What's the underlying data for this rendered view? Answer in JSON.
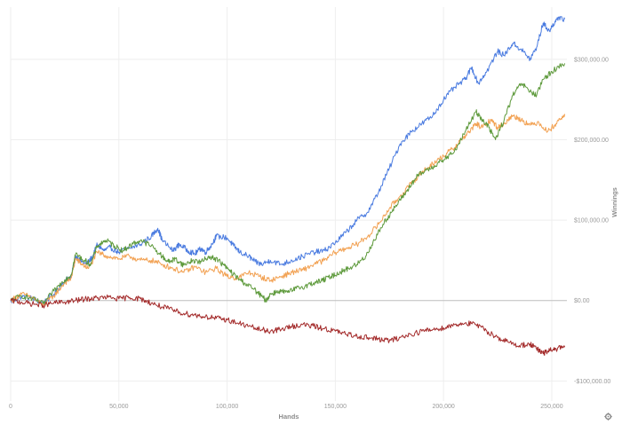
{
  "chart_data": {
    "type": "line",
    "title": "",
    "xlabel": "Hands",
    "ylabel": "Winnings",
    "xlim": [
      0,
      257000
    ],
    "ylim": [
      -125000,
      365000
    ],
    "x_ticks": [
      0,
      50000,
      100000,
      150000,
      200000,
      250000
    ],
    "x_tick_labels": [
      "0",
      "50,000",
      "100,000",
      "150,000",
      "200,000",
      "250,000"
    ],
    "y_ticks": [
      -100000,
      0,
      100000,
      200000,
      300000
    ],
    "y_tick_labels": [
      "-$100,000.00",
      "$0.00",
      "$100,000.00",
      "$200,000.00",
      "$300,000.00"
    ],
    "grid": true,
    "series": [
      {
        "color": "#4a7be0",
        "points": [
          [
            0,
            -2000
          ],
          [
            5000,
            5000
          ],
          [
            10000,
            3000
          ],
          [
            15000,
            -3000
          ],
          [
            20000,
            8000
          ],
          [
            25000,
            25000
          ],
          [
            28000,
            30000
          ],
          [
            30000,
            55000
          ],
          [
            32000,
            50000
          ],
          [
            35000,
            45000
          ],
          [
            38000,
            55000
          ],
          [
            40000,
            70000
          ],
          [
            43000,
            62000
          ],
          [
            46000,
            66000
          ],
          [
            50000,
            60000
          ],
          [
            55000,
            65000
          ],
          [
            60000,
            70000
          ],
          [
            65000,
            80000
          ],
          [
            68000,
            90000
          ],
          [
            70000,
            75000
          ],
          [
            75000,
            62000
          ],
          [
            78000,
            70000
          ],
          [
            82000,
            62000
          ],
          [
            85000,
            58000
          ],
          [
            88000,
            65000
          ],
          [
            90000,
            60000
          ],
          [
            93000,
            70000
          ],
          [
            95000,
            80000
          ],
          [
            100000,
            78000
          ],
          [
            103000,
            68000
          ],
          [
            106000,
            60000
          ],
          [
            110000,
            55000
          ],
          [
            113000,
            48000
          ],
          [
            116000,
            45000
          ],
          [
            120000,
            50000
          ],
          [
            125000,
            45000
          ],
          [
            130000,
            50000
          ],
          [
            135000,
            55000
          ],
          [
            140000,
            60000
          ],
          [
            145000,
            62000
          ],
          [
            150000,
            72000
          ],
          [
            155000,
            85000
          ],
          [
            160000,
            100000
          ],
          [
            165000,
            110000
          ],
          [
            170000,
            135000
          ],
          [
            175000,
            165000
          ],
          [
            180000,
            195000
          ],
          [
            185000,
            210000
          ],
          [
            190000,
            220000
          ],
          [
            195000,
            230000
          ],
          [
            200000,
            250000
          ],
          [
            205000,
            265000
          ],
          [
            210000,
            275000
          ],
          [
            213000,
            290000
          ],
          [
            216000,
            270000
          ],
          [
            220000,
            285000
          ],
          [
            225000,
            310000
          ],
          [
            228000,
            305000
          ],
          [
            232000,
            320000
          ],
          [
            236000,
            312000
          ],
          [
            240000,
            300000
          ],
          [
            243000,
            315000
          ],
          [
            246000,
            345000
          ],
          [
            249000,
            335000
          ],
          [
            252000,
            350000
          ],
          [
            256000,
            350000
          ]
        ]
      },
      {
        "color": "#f2a152",
        "points": [
          [
            0,
            0
          ],
          [
            5000,
            8000
          ],
          [
            10000,
            4000
          ],
          [
            15000,
            -6000
          ],
          [
            20000,
            6000
          ],
          [
            25000,
            22000
          ],
          [
            28000,
            28000
          ],
          [
            30000,
            52000
          ],
          [
            33000,
            45000
          ],
          [
            36000,
            40000
          ],
          [
            40000,
            60000
          ],
          [
            45000,
            55000
          ],
          [
            50000,
            52000
          ],
          [
            55000,
            55000
          ],
          [
            60000,
            50000
          ],
          [
            65000,
            50000
          ],
          [
            70000,
            45000
          ],
          [
            75000,
            40000
          ],
          [
            80000,
            35000
          ],
          [
            85000,
            42000
          ],
          [
            90000,
            35000
          ],
          [
            95000,
            40000
          ],
          [
            100000,
            30000
          ],
          [
            105000,
            28000
          ],
          [
            110000,
            35000
          ],
          [
            115000,
            30000
          ],
          [
            120000,
            25000
          ],
          [
            125000,
            30000
          ],
          [
            130000,
            35000
          ],
          [
            135000,
            38000
          ],
          [
            140000,
            45000
          ],
          [
            145000,
            50000
          ],
          [
            150000,
            60000
          ],
          [
            155000,
            65000
          ],
          [
            160000,
            70000
          ],
          [
            165000,
            80000
          ],
          [
            170000,
            95000
          ],
          [
            175000,
            115000
          ],
          [
            180000,
            130000
          ],
          [
            185000,
            145000
          ],
          [
            190000,
            160000
          ],
          [
            195000,
            170000
          ],
          [
            200000,
            180000
          ],
          [
            205000,
            190000
          ],
          [
            208000,
            200000
          ],
          [
            212000,
            210000
          ],
          [
            215000,
            220000
          ],
          [
            218000,
            215000
          ],
          [
            222000,
            225000
          ],
          [
            225000,
            215000
          ],
          [
            228000,
            220000
          ],
          [
            232000,
            230000
          ],
          [
            236000,
            225000
          ],
          [
            240000,
            218000
          ],
          [
            244000,
            222000
          ],
          [
            248000,
            210000
          ],
          [
            252000,
            220000
          ],
          [
            256000,
            232000
          ]
        ]
      },
      {
        "color": "#5e9a3c",
        "points": [
          [
            0,
            0
          ],
          [
            5000,
            6000
          ],
          [
            10000,
            2000
          ],
          [
            15000,
            -4000
          ],
          [
            20000,
            12000
          ],
          [
            25000,
            26000
          ],
          [
            28000,
            32000
          ],
          [
            30000,
            58000
          ],
          [
            34000,
            50000
          ],
          [
            37000,
            45000
          ],
          [
            40000,
            68000
          ],
          [
            44000,
            75000
          ],
          [
            48000,
            68000
          ],
          [
            52000,
            62000
          ],
          [
            56000,
            70000
          ],
          [
            60000,
            75000
          ],
          [
            65000,
            68000
          ],
          [
            70000,
            55000
          ],
          [
            73000,
            48000
          ],
          [
            76000,
            52000
          ],
          [
            80000,
            44000
          ],
          [
            84000,
            50000
          ],
          [
            88000,
            48000
          ],
          [
            92000,
            55000
          ],
          [
            96000,
            50000
          ],
          [
            100000,
            40000
          ],
          [
            104000,
            30000
          ],
          [
            108000,
            22000
          ],
          [
            112000,
            15000
          ],
          [
            116000,
            5000
          ],
          [
            118000,
            0
          ],
          [
            120000,
            8000
          ],
          [
            124000,
            12000
          ],
          [
            128000,
            10000
          ],
          [
            132000,
            15000
          ],
          [
            136000,
            18000
          ],
          [
            140000,
            22000
          ],
          [
            144000,
            25000
          ],
          [
            148000,
            30000
          ],
          [
            152000,
            35000
          ],
          [
            156000,
            40000
          ],
          [
            160000,
            45000
          ],
          [
            164000,
            55000
          ],
          [
            168000,
            75000
          ],
          [
            172000,
            95000
          ],
          [
            176000,
            110000
          ],
          [
            180000,
            125000
          ],
          [
            184000,
            140000
          ],
          [
            188000,
            155000
          ],
          [
            192000,
            162000
          ],
          [
            196000,
            168000
          ],
          [
            200000,
            175000
          ],
          [
            205000,
            185000
          ],
          [
            210000,
            210000
          ],
          [
            215000,
            235000
          ],
          [
            218000,
            225000
          ],
          [
            221000,
            215000
          ],
          [
            224000,
            200000
          ],
          [
            228000,
            225000
          ],
          [
            232000,
            255000
          ],
          [
            236000,
            270000
          ],
          [
            240000,
            260000
          ],
          [
            243000,
            255000
          ],
          [
            246000,
            275000
          ],
          [
            250000,
            285000
          ],
          [
            256000,
            295000
          ]
        ]
      },
      {
        "color": "#a32a2a",
        "points": [
          [
            0,
            0
          ],
          [
            5000,
            -2000
          ],
          [
            10000,
            -4000
          ],
          [
            15000,
            -6000
          ],
          [
            20000,
            -3000
          ],
          [
            25000,
            -2000
          ],
          [
            30000,
            0
          ],
          [
            35000,
            2000
          ],
          [
            40000,
            3000
          ],
          [
            45000,
            4000
          ],
          [
            50000,
            2000
          ],
          [
            55000,
            4000
          ],
          [
            60000,
            2000
          ],
          [
            65000,
            -3000
          ],
          [
            70000,
            -8000
          ],
          [
            75000,
            -12000
          ],
          [
            80000,
            -16000
          ],
          [
            85000,
            -18000
          ],
          [
            90000,
            -20000
          ],
          [
            95000,
            -22000
          ],
          [
            100000,
            -24000
          ],
          [
            105000,
            -28000
          ],
          [
            110000,
            -32000
          ],
          [
            115000,
            -36000
          ],
          [
            120000,
            -38000
          ],
          [
            125000,
            -36000
          ],
          [
            130000,
            -32000
          ],
          [
            135000,
            -30000
          ],
          [
            140000,
            -32000
          ],
          [
            145000,
            -35000
          ],
          [
            150000,
            -38000
          ],
          [
            155000,
            -42000
          ],
          [
            160000,
            -44000
          ],
          [
            165000,
            -46000
          ],
          [
            170000,
            -48000
          ],
          [
            175000,
            -50000
          ],
          [
            180000,
            -46000
          ],
          [
            185000,
            -42000
          ],
          [
            190000,
            -38000
          ],
          [
            195000,
            -36000
          ],
          [
            200000,
            -34000
          ],
          [
            205000,
            -30000
          ],
          [
            210000,
            -28000
          ],
          [
            215000,
            -30000
          ],
          [
            220000,
            -38000
          ],
          [
            225000,
            -46000
          ],
          [
            230000,
            -52000
          ],
          [
            235000,
            -56000
          ],
          [
            240000,
            -54000
          ],
          [
            243000,
            -60000
          ],
          [
            246000,
            -66000
          ],
          [
            249000,
            -62000
          ],
          [
            252000,
            -60000
          ],
          [
            256000,
            -58000
          ]
        ]
      }
    ]
  }
}
